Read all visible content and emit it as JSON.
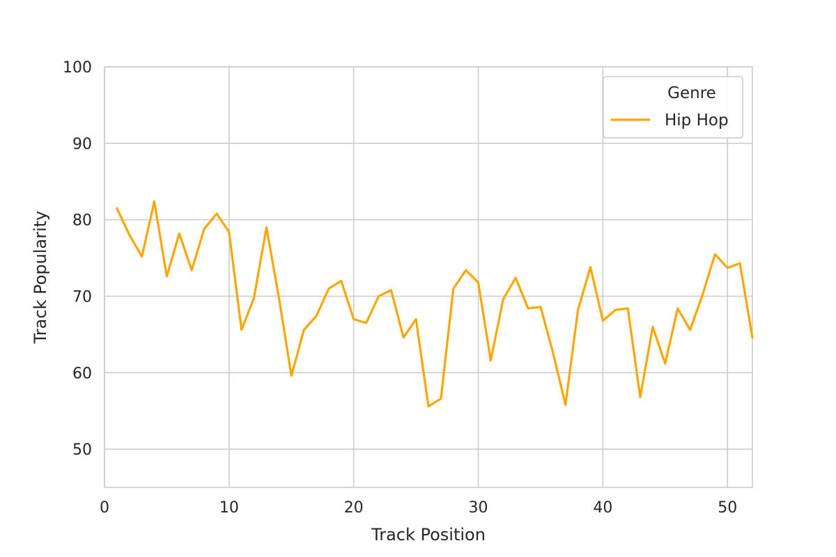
{
  "chart_data": {
    "type": "line",
    "xlabel": "Track Position",
    "ylabel": "Track Popularity",
    "xlim": [
      0,
      52
    ],
    "ylim": [
      45,
      100
    ],
    "x_ticks": [
      0,
      10,
      20,
      30,
      40,
      50
    ],
    "y_ticks": [
      50,
      60,
      70,
      80,
      90,
      100
    ],
    "grid": true,
    "legend": {
      "title": "Genre",
      "placement": "top-right"
    },
    "series": [
      {
        "name": "Hip Hop",
        "color": "#ffa500",
        "x": [
          1,
          2,
          3,
          4,
          5,
          6,
          7,
          8,
          9,
          10,
          11,
          12,
          13,
          14,
          15,
          16,
          17,
          18,
          19,
          20,
          21,
          22,
          23,
          24,
          25,
          26,
          27,
          28,
          29,
          30,
          31,
          32,
          33,
          34,
          35,
          36,
          37,
          38,
          39,
          40,
          41,
          42,
          43,
          44,
          45,
          46,
          47,
          48,
          49,
          50,
          51,
          52
        ],
        "values": [
          81.5,
          78,
          75.2,
          82.4,
          72.6,
          78.2,
          73.4,
          78.8,
          80.8,
          78.4,
          65.6,
          69.8,
          79,
          69.8,
          59.6,
          65.6,
          67.4,
          71,
          72,
          67,
          66.5,
          70,
          70.8,
          64.6,
          67,
          55.6,
          56.6,
          71,
          73.4,
          71.8,
          61.6,
          69.6,
          72.4,
          68.4,
          68.6,
          62.6,
          55.8,
          68.2,
          73.8,
          66.8,
          68.2,
          68.4,
          56.8,
          66,
          61.2,
          68.4,
          65.6,
          70.2,
          75.5,
          73.7,
          74.3,
          64.6
        ]
      }
    ]
  }
}
